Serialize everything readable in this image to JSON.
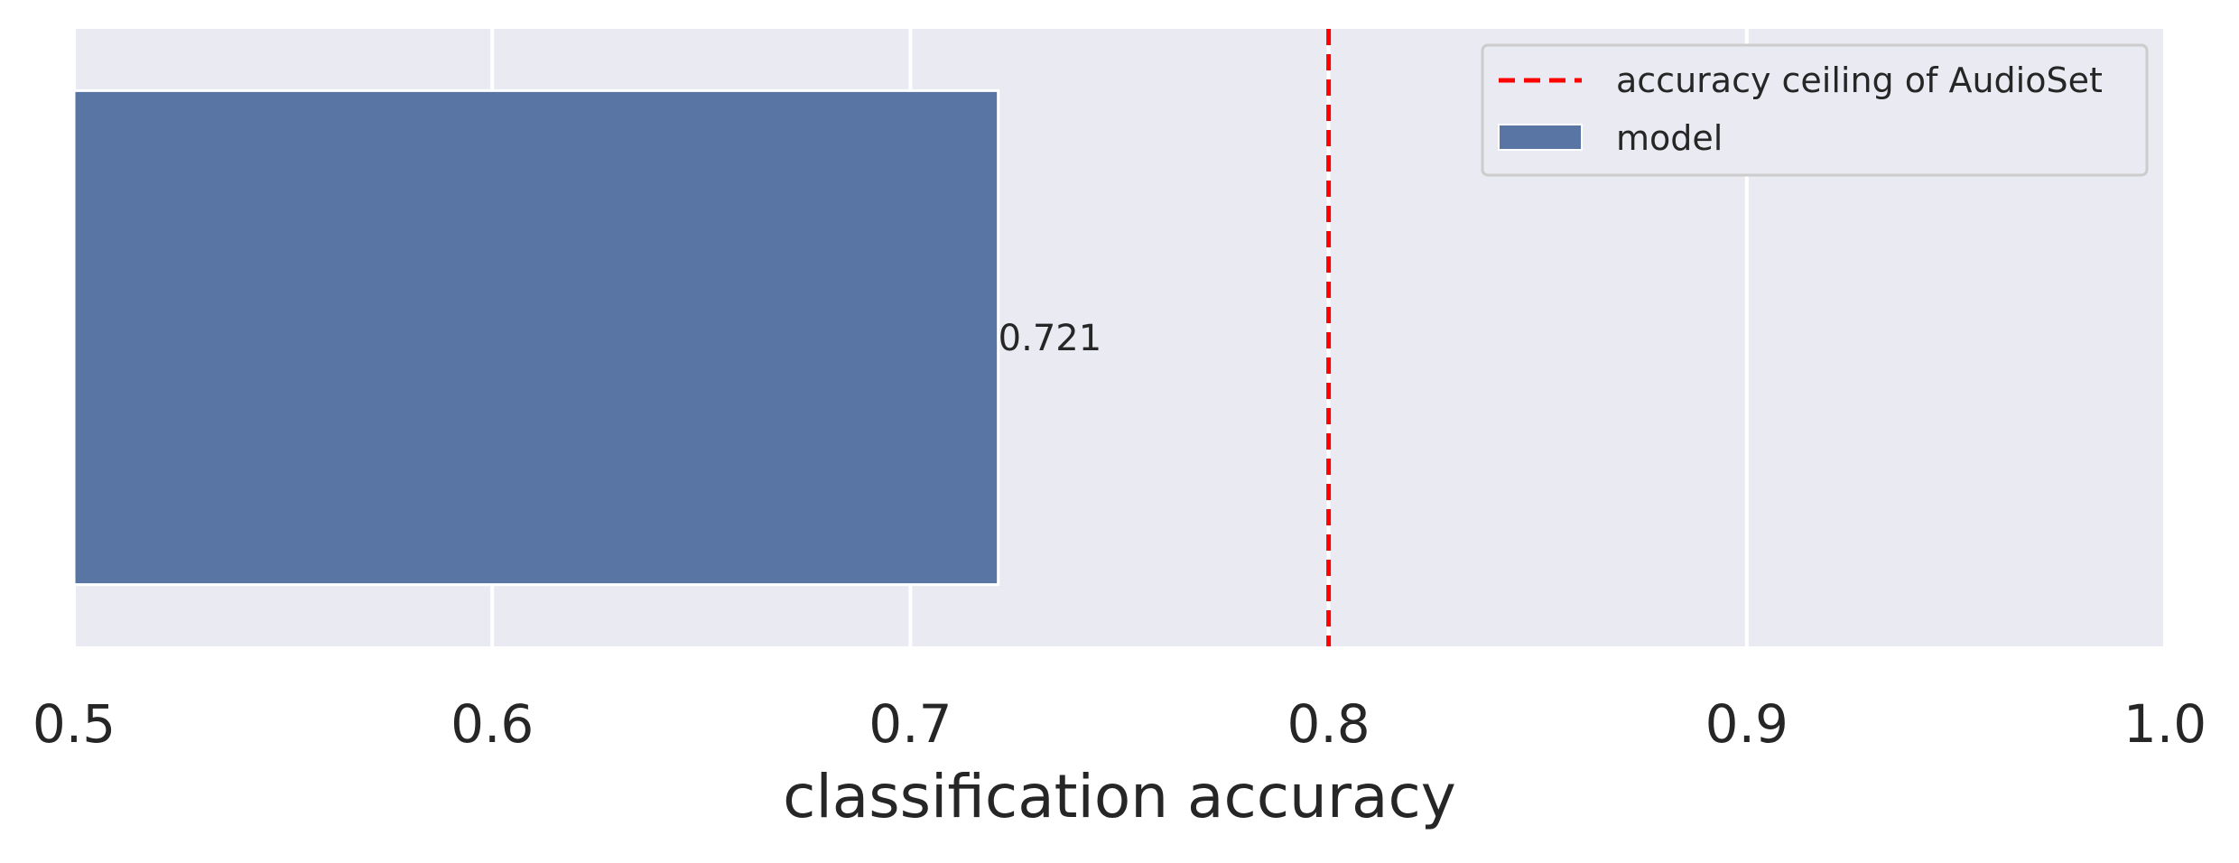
{
  "chart_data": {
    "type": "bar",
    "orientation": "horizontal",
    "xlabel": "classification accuracy",
    "ylabel": "",
    "xlim": [
      0.5,
      1.0
    ],
    "xticks": [
      0.5,
      0.6,
      0.7,
      0.8,
      0.9,
      1.0
    ],
    "xtick_labels": [
      "0.5",
      "0.6",
      "0.7",
      "0.8",
      "0.9",
      "1.0"
    ],
    "grid": true,
    "bars": [
      {
        "value": 0.721,
        "label": "0.721",
        "color": "#5975a4"
      }
    ],
    "reference_line": {
      "value": 0.8,
      "style": "dashed",
      "color": "#ff0000"
    },
    "legend": {
      "position": "top-right",
      "entries": [
        {
          "kind": "line",
          "label": "accuracy ceiling of AudioSet",
          "color": "#ff0000"
        },
        {
          "kind": "patch",
          "label": "model",
          "color": "#5975a4"
        }
      ]
    },
    "background_color": "#eaeaf2"
  }
}
